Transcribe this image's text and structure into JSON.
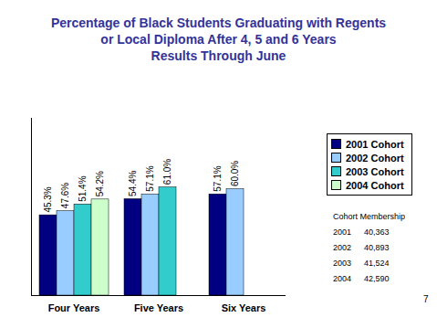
{
  "chart_data": {
    "type": "bar",
    "title": "Percentage of Black Students Graduating with Regents\nor Local Diploma After 4, 5 and 6 Years\nResults Through June",
    "categories": [
      "Four Years",
      "Five Years",
      "Six Years"
    ],
    "series": [
      {
        "name": "2001 Cohort",
        "color": "#000080",
        "values": [
          45.3,
          54.4,
          57.1
        ],
        "value_labels": [
          "45.3%",
          "54.4%",
          "57.1%"
        ]
      },
      {
        "name": "2002 Cohort",
        "color": "#99ccff",
        "values": [
          47.6,
          57.1,
          60.0
        ],
        "value_labels": [
          "47.6%",
          "57.1%",
          "60.0%"
        ]
      },
      {
        "name": "2003 Cohort",
        "color": "#33cccc",
        "values": [
          51.4,
          61.0,
          null
        ],
        "value_labels": [
          "51.4%",
          "61.0%",
          null
        ]
      },
      {
        "name": "2004 Cohort",
        "color": "#ccffcc",
        "values": [
          54.2,
          null,
          null
        ],
        "value_labels": [
          "54.2%",
          null,
          null
        ]
      }
    ],
    "ylim": [
      0,
      100
    ],
    "yticks": [],
    "grid": false,
    "legend": "right",
    "data_labels": true,
    "tick_labels": "x",
    "table": {
      "title": "Cohort Membership",
      "rows": [
        [
          "2001",
          "40,363"
        ],
        [
          "2002",
          "40,893"
        ],
        [
          "2003",
          "41,524"
        ],
        [
          "2004",
          "42,590"
        ]
      ]
    },
    "annotations": [
      "7"
    ]
  }
}
